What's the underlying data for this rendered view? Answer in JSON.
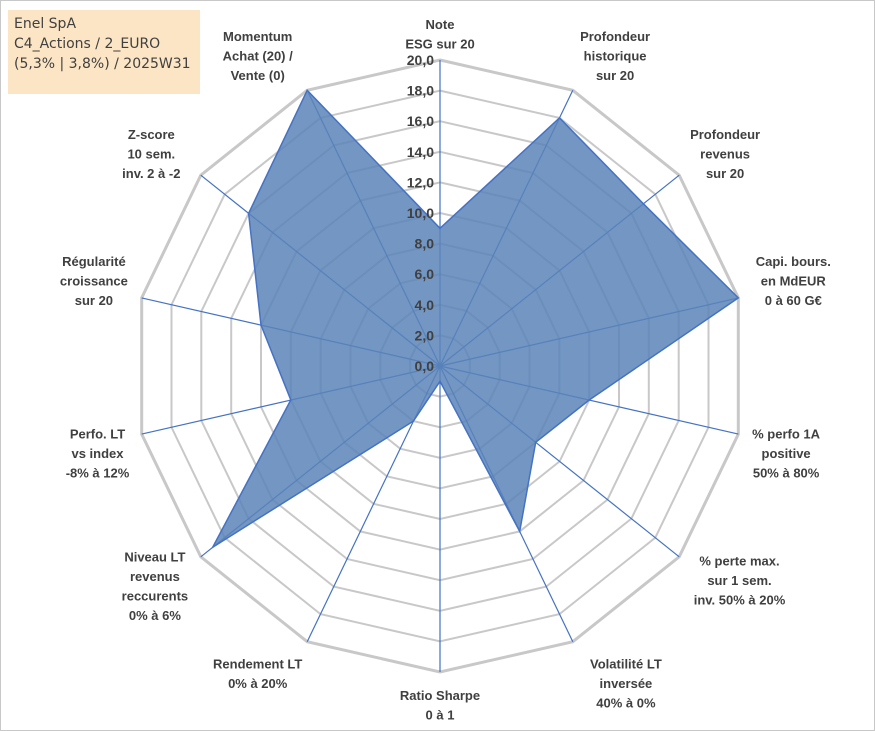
{
  "info": {
    "line1": "Enel SpA",
    "line2": "C4_Actions / 2_EURO",
    "line3": "(5,3% | 3,8%) / 2025W31"
  },
  "colors": {
    "grid": "#c8c8c8",
    "spoke": "#4472c4",
    "fill": "#5b84b9",
    "text": "#404040",
    "info_bg": "#fbe5c5"
  },
  "chart_data": {
    "type": "radar",
    "rmin": 0,
    "rmax": 20,
    "ticks": [
      "0,0",
      "2,0",
      "4,0",
      "6,0",
      "8,0",
      "10,0",
      "12,0",
      "14,0",
      "16,0",
      "18,0",
      "20,0"
    ],
    "grid": true,
    "axes": [
      {
        "label": [
          "Note",
          "ESG sur 20"
        ],
        "value": 9
      },
      {
        "label": [
          "Profondeur",
          "historique",
          "sur 20"
        ],
        "value": 18
      },
      {
        "label": [
          "Profondeur",
          "revenus",
          "sur 20"
        ],
        "value": 17
      },
      {
        "label": [
          "Capi. bours.",
          "en MdEUR",
          "0 à 60 G€"
        ],
        "value": 20
      },
      {
        "label": [
          "% perfo 1A",
          "positive",
          "50% à 80%"
        ],
        "value": 10
      },
      {
        "label": [
          "% perte max.",
          "sur 1 sem.",
          "inv. 50% à 20%"
        ],
        "value": 8
      },
      {
        "label": [
          "Volatilité LT",
          "inversée",
          "40% à 0%"
        ],
        "value": 12
      },
      {
        "label": [
          "Ratio Sharpe",
          "0 à 1"
        ],
        "value": 1
      },
      {
        "label": [
          "Rendement LT",
          "0% à 20%"
        ],
        "value": 4
      },
      {
        "label": [
          "Niveau LT",
          "revenus",
          "reccurents",
          "0% à 6%"
        ],
        "value": 19
      },
      {
        "label": [
          "Perfo. LT",
          "vs index",
          "-8% à 12%"
        ],
        "value": 10
      },
      {
        "label": [
          "Régularité",
          "croissance",
          "sur 20"
        ],
        "value": 12
      },
      {
        "label": [
          "Z-score",
          "10 sem.",
          "inv. 2 à -2"
        ],
        "value": 16
      },
      {
        "label": [
          "Momentum",
          "Achat (20) /",
          "Vente (0)"
        ],
        "value": 20
      }
    ]
  }
}
